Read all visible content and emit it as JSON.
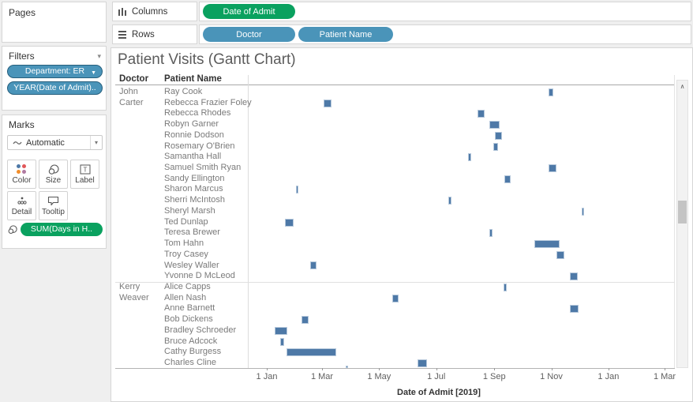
{
  "icons": {
    "caret_down_small": "▾",
    "caret_down_pill": "▼",
    "scroll_up": "∧",
    "squiggle": "∿"
  },
  "colors": {
    "pill_blue": "#4a94b9",
    "pill_green": "#0aa15f",
    "bar_fill": "#4e79a7",
    "bar_border": "#b7c9dc"
  },
  "sidebar": {
    "pages_label": "Pages",
    "filters": {
      "label": "Filters",
      "pills": [
        {
          "text": "Department: ER",
          "has_caret": true
        },
        {
          "text": "YEAR(Date of Admit)..",
          "has_caret": false
        }
      ]
    },
    "marks": {
      "label": "Marks",
      "mark_type": "Automatic",
      "buttons": [
        {
          "label": "Color"
        },
        {
          "label": "Size"
        },
        {
          "label": "Label"
        },
        {
          "label": "Detail"
        },
        {
          "label": "Tooltip"
        }
      ],
      "size_pill": "SUM(Days in H.."
    }
  },
  "shelves": {
    "columns": {
      "label": "Columns",
      "pills": [
        {
          "text": "Date of Admit"
        }
      ]
    },
    "rows": {
      "label": "Rows",
      "pills": [
        {
          "text": "Doctor"
        },
        {
          "text": "Patient Name"
        }
      ]
    }
  },
  "chart": {
    "title": "Patient Visits (Gantt Chart)",
    "doctor_header": "Doctor",
    "patient_header": "Patient Name",
    "axis_title": "Date of Admit [2019]"
  },
  "chart_data": {
    "type": "bar",
    "variant": "gantt",
    "title": "Patient Visits (Gantt Chart)",
    "xlabel": "Date of Admit [2019]",
    "bar_metric": "SUM(Days in Hospital)",
    "row_headers": [
      "Doctor",
      "Patient Name"
    ],
    "x_axis": {
      "start": "2019-01-01",
      "end": "2020-03-16",
      "ticks": [
        {
          "date": "2019-01-01",
          "label": "1 Jan"
        },
        {
          "date": "2019-03-01",
          "label": "1 Mar"
        },
        {
          "date": "2019-05-01",
          "label": "1 May"
        },
        {
          "date": "2019-07-01",
          "label": "1 Jul"
        },
        {
          "date": "2019-09-01",
          "label": "1 Sep"
        },
        {
          "date": "2019-11-01",
          "label": "1 Nov"
        },
        {
          "date": "2020-01-01",
          "label": "1 Jan"
        },
        {
          "date": "2020-03-01",
          "label": "1 Mar"
        }
      ]
    },
    "groups": [
      {
        "doctor": "John Carter",
        "patients": [
          {
            "name": "Ray Cook",
            "admit": "2019-10-29",
            "days": 5
          },
          {
            "name": "Rebecca Frazier Foley",
            "admit": "2019-03-03",
            "days": 8
          },
          {
            "name": "Rebecca Rhodes",
            "admit": "2019-08-14",
            "days": 8
          },
          {
            "name": "Robyn Garner",
            "admit": "2019-08-27",
            "days": 11
          },
          {
            "name": "Ronnie Dodson",
            "admit": "2019-09-02",
            "days": 7
          },
          {
            "name": "Rosemary O'Brien",
            "admit": "2019-08-31",
            "days": 5
          },
          {
            "name": "Samantha Hall",
            "admit": "2019-08-04",
            "days": 3
          },
          {
            "name": "Samuel Smith Ryan",
            "admit": "2019-10-29",
            "days": 8
          },
          {
            "name": "Sandy Ellington",
            "admit": "2019-09-12",
            "days": 7
          },
          {
            "name": "Sharon Marcus",
            "admit": "2019-02-01",
            "days": 3
          },
          {
            "name": "Sherri McIntosh",
            "admit": "2019-07-14",
            "days": 3
          },
          {
            "name": "Sheryl Marsh",
            "admit": "2019-12-03",
            "days": 3
          },
          {
            "name": "Ted Dunlap",
            "admit": "2019-01-20",
            "days": 10
          },
          {
            "name": "Teresa Brewer",
            "admit": "2019-08-27",
            "days": 3
          },
          {
            "name": "Tom Hahn",
            "admit": "2019-10-14",
            "days": 27
          },
          {
            "name": "Troy Casey",
            "admit": "2019-11-06",
            "days": 9
          },
          {
            "name": "Wesley Waller",
            "admit": "2019-02-16",
            "days": 7
          },
          {
            "name": "Yvonne D McLeod",
            "admit": "2019-11-21",
            "days": 8
          }
        ]
      },
      {
        "doctor": "Kerry Weaver",
        "patients": [
          {
            "name": "Alice Capps",
            "admit": "2019-09-11",
            "days": 3
          },
          {
            "name": "Allen Nash",
            "admit": "2019-05-15",
            "days": 7
          },
          {
            "name": "Anne Barnett",
            "admit": "2019-11-21",
            "days": 9
          },
          {
            "name": "Bob Dickens",
            "admit": "2019-02-07",
            "days": 8
          },
          {
            "name": "Bradley Schroeder",
            "admit": "2019-01-09",
            "days": 14
          },
          {
            "name": "Bruce Adcock",
            "admit": "2019-01-15",
            "days": 5
          },
          {
            "name": "Cathy Burgess",
            "admit": "2019-01-22",
            "days": 53
          },
          {
            "name": "Charles Cline",
            "admit": "2019-06-11",
            "days": 10
          }
        ]
      }
    ],
    "clipped_partial_bar": {
      "admit": "2019-03-26",
      "days": 3
    }
  }
}
